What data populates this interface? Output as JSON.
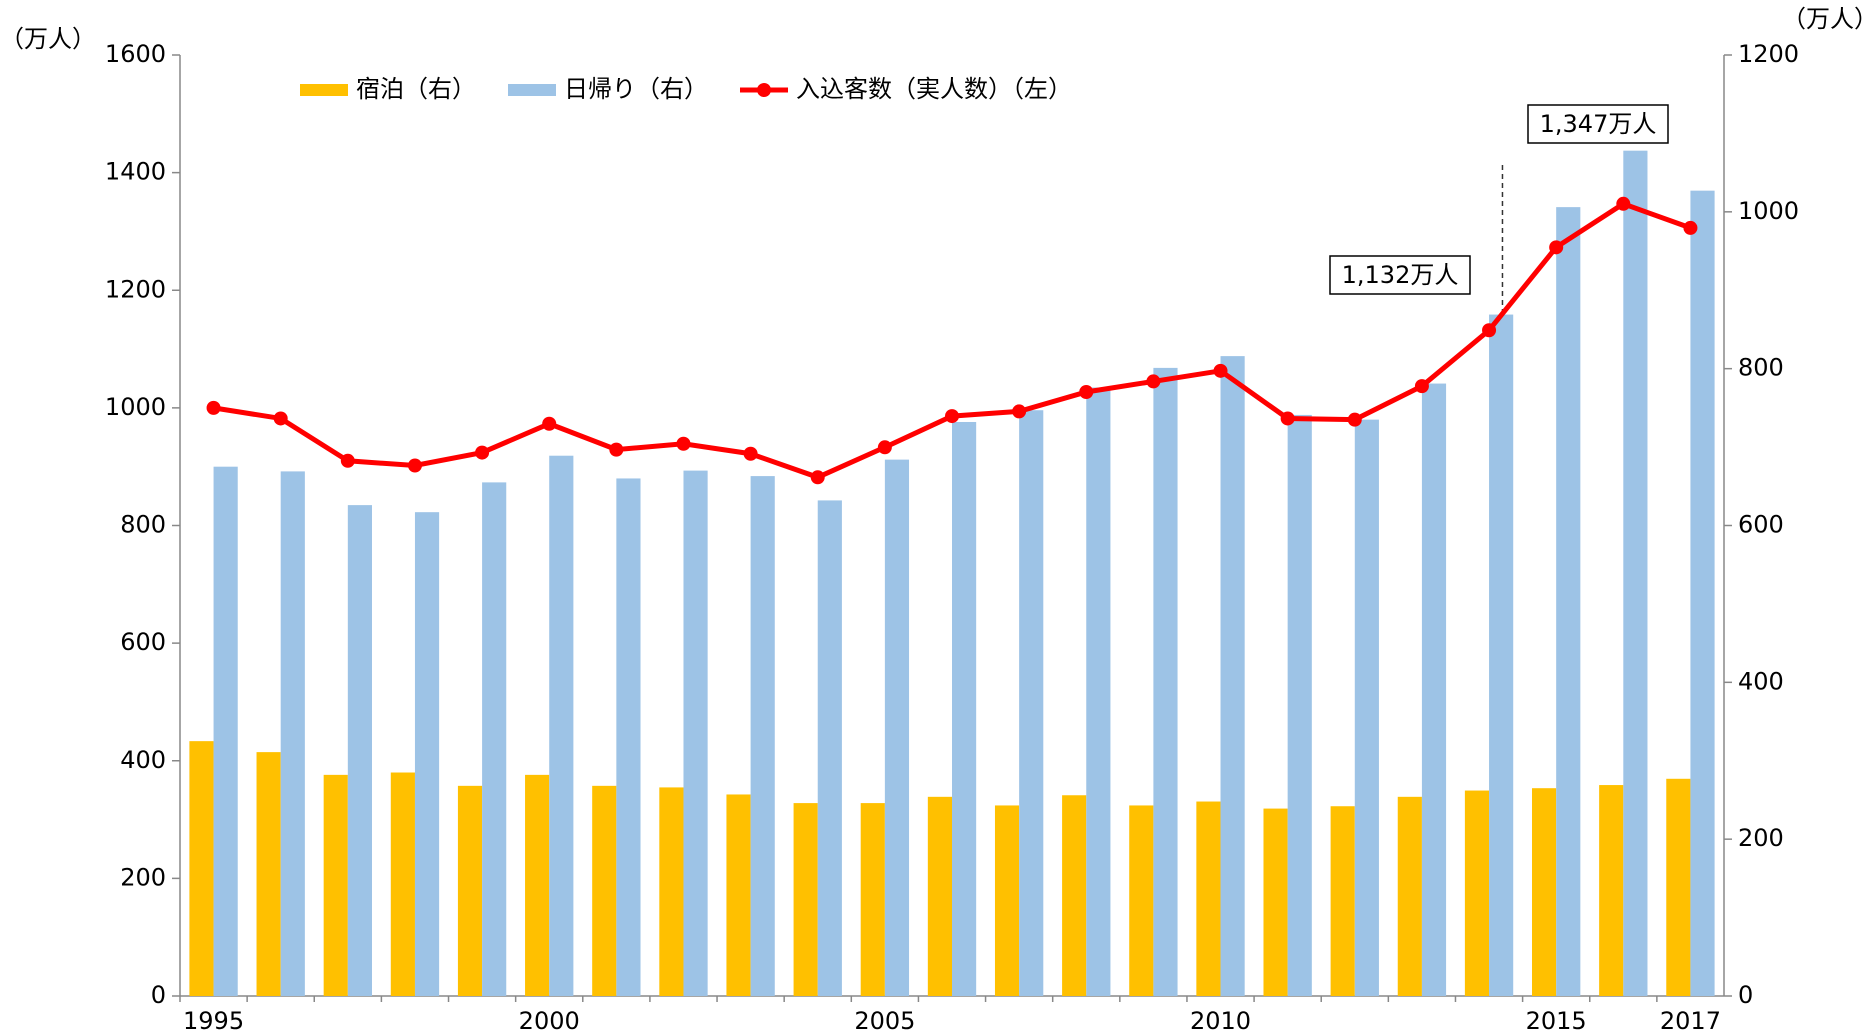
{
  "chart_data": {
    "type": "bar-line",
    "y_label": "（万人）",
    "y2_label": "（万人）",
    "categories": [
      "1995",
      null,
      null,
      null,
      null,
      "2000",
      null,
      null,
      null,
      null,
      "2005",
      null,
      null,
      null,
      null,
      "2010",
      null,
      null,
      null,
      null,
      "2015",
      null,
      "2017"
    ],
    "series": [
      {
        "name": "宿泊（右）",
        "color": "#ffc000",
        "type": "bar",
        "axis": "y2",
        "values": [
          325,
          311,
          282,
          285,
          268,
          282,
          268,
          266,
          257,
          246,
          246,
          254,
          243,
          256,
          243,
          248,
          239,
          242,
          254,
          262,
          265,
          269,
          277
        ]
      },
      {
        "name": "日帰り（右）",
        "color": "#9dc3e6",
        "type": "bar",
        "axis": "y2",
        "values": [
          675,
          669,
          626,
          617,
          655,
          689,
          660,
          670,
          663,
          632,
          684,
          732,
          747,
          776,
          801,
          816,
          741,
          735,
          781,
          869,
          1006,
          1078,
          1027
        ]
      },
      {
        "name": "入込客数（実人数）（左）",
        "color": "#ff0000",
        "type": "line",
        "axis": "y",
        "values": [
          1000,
          982,
          910,
          902,
          924,
          973,
          929,
          939,
          922,
          882,
          933,
          986,
          994,
          1027,
          1045,
          1063,
          982,
          980,
          1037,
          1132,
          1273,
          1347,
          1306
        ]
      }
    ],
    "annotations": [
      "1,132万人",
      "1,347万人"
    ],
    "ylim": [
      0,
      1600
    ],
    "yticks": [
      0,
      200,
      400,
      600,
      800,
      1000,
      1200,
      1400,
      1600
    ],
    "y2lim": [
      0,
      1200
    ],
    "y2ticks": [
      0,
      200,
      400,
      600,
      800,
      1000,
      1200
    ],
    "legend": "top"
  }
}
